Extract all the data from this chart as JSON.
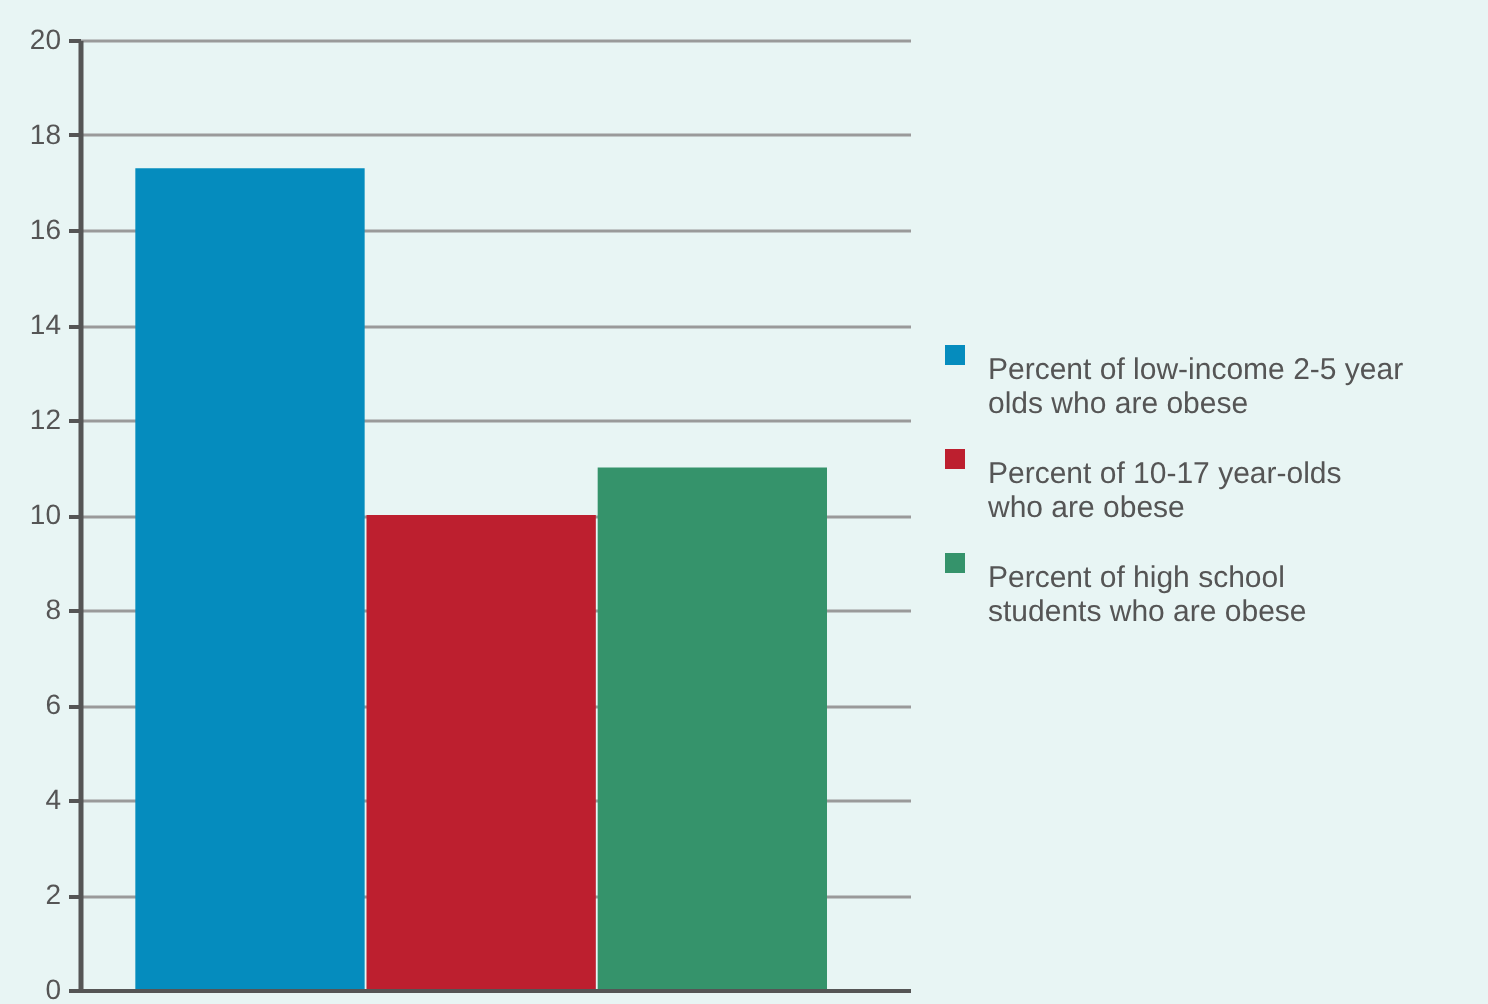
{
  "chart_data": {
    "type": "bar",
    "categories": [
      null
    ],
    "series": [
      {
        "name": "Percent of low-income 2-5 year olds who are obese",
        "color": "#058cbe",
        "values": [
          17.3
        ]
      },
      {
        "name": "Percent of 10-17 year-olds who are obese",
        "color": "#bd1f2f",
        "values": [
          10.0
        ]
      },
      {
        "name": "Percent of high school students who are obese",
        "color": "#35936b",
        "values": [
          11.0
        ]
      }
    ],
    "ylim": [
      0,
      20
    ],
    "yticks": [
      0,
      2,
      4,
      6,
      8,
      10,
      12,
      14,
      16,
      18,
      20
    ],
    "grid": "y",
    "legend": "right"
  }
}
